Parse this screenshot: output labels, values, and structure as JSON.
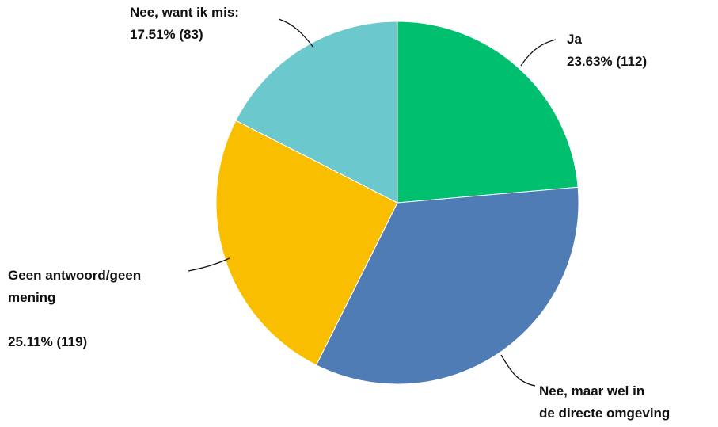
{
  "chart_data": {
    "type": "pie",
    "title": "",
    "start_angle_deg": 0,
    "direction": "clockwise",
    "slices": [
      {
        "label_lines": [
          "Ja"
        ],
        "value_text": "23.63% (112)",
        "percent": 23.63,
        "count": 112,
        "color": "#00BF6F"
      },
      {
        "label_lines": [
          "Nee, maar wel in",
          "de directe omgeving"
        ],
        "value_text": "",
        "percent": 33.76,
        "count": 160,
        "color": "#507CB6"
      },
      {
        "label_lines": [
          "Geen antwoord/geen",
          "mening"
        ],
        "value_text": "25.11% (119)",
        "percent": 25.11,
        "count": 119,
        "color": "#F9BE00"
      },
      {
        "label_lines": [
          "Nee, want ik mis:"
        ],
        "value_text": "17.51% (83)",
        "percent": 17.51,
        "count": 83,
        "color": "#6BC8CD"
      }
    ]
  }
}
